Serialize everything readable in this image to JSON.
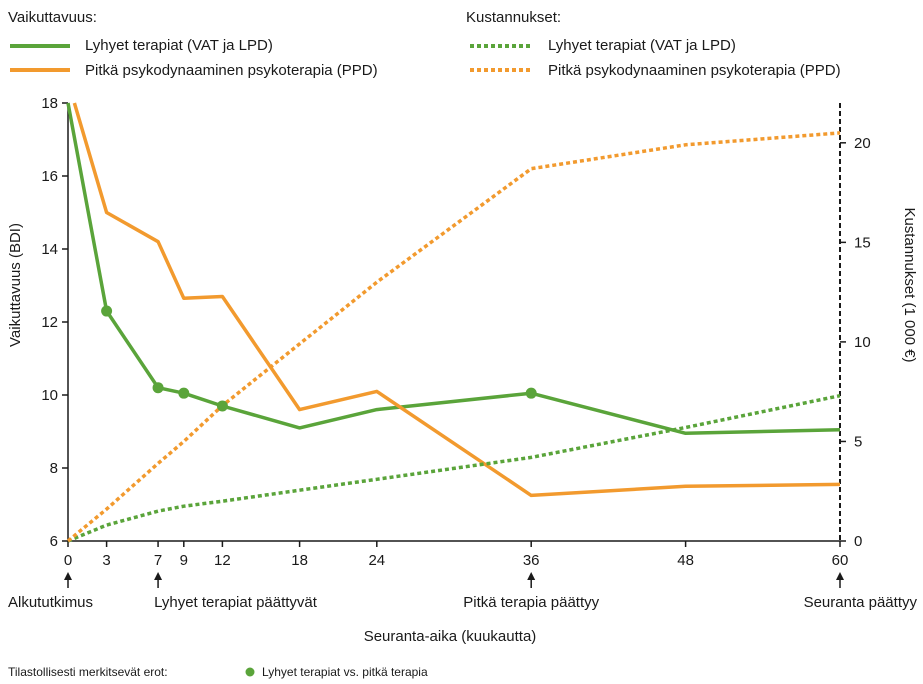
{
  "chart_data": {
    "type": "line",
    "legend": {
      "left_title": "Vaikuttavuus:",
      "right_title": "Kustannukset:",
      "left_items": [
        {
          "label": "Lyhyet terapiat (VAT ja LPD)",
          "style": "solid",
          "color": "#5aa43a"
        },
        {
          "label": "Pitkä psykodynaaminen psykoterapia (PPD)",
          "style": "solid",
          "color": "#f29a2e"
        }
      ],
      "right_items": [
        {
          "label": "Lyhyet terapiat (VAT ja LPD)",
          "style": "dotted",
          "color": "#5aa43a"
        },
        {
          "label": "Pitkä psykodynaaminen psykoterapia (PPD)",
          "style": "dotted",
          "color": "#f29a2e"
        }
      ]
    },
    "xlabel": "Seuranta-aika (kuukautta)",
    "ylabel_left": "Vaikuttavuus (BDI)",
    "ylabel_right": "Kustannukset (1 000 €)",
    "x_ticks": [
      0,
      3,
      7,
      9,
      12,
      18,
      24,
      36,
      48,
      60
    ],
    "xlim": [
      0,
      60
    ],
    "ylim_left": [
      6,
      18
    ],
    "y_ticks_left": [
      6,
      8,
      10,
      12,
      14,
      16,
      18
    ],
    "ylim_right": [
      0,
      22
    ],
    "y_ticks_right": [
      0,
      5,
      10,
      15,
      20
    ],
    "series": [
      {
        "name": "Lyhyet terapiat (VAT ja LPD)",
        "axis": "left",
        "style": "solid",
        "color": "#5aa43a",
        "x": [
          0,
          3,
          7,
          9,
          12,
          18,
          24,
          36,
          48,
          60
        ],
        "y": [
          18,
          12.3,
          10.2,
          10.05,
          9.7,
          9.1,
          9.6,
          10.05,
          8.95,
          9.05
        ]
      },
      {
        "name": "Pitkä psykodynaaminen psykoterapia (PPD)",
        "axis": "left",
        "style": "solid",
        "color": "#f29a2e",
        "x": [
          0.5,
          3,
          7,
          9,
          12,
          18,
          24,
          36,
          48,
          60
        ],
        "y": [
          18,
          15.0,
          14.2,
          12.65,
          12.7,
          9.6,
          10.1,
          7.25,
          7.5,
          7.55
        ]
      },
      {
        "name": "Lyhyet terapiat (VAT ja LPD)",
        "axis": "right",
        "style": "dotted",
        "color": "#5aa43a",
        "x": [
          0,
          3,
          7,
          9,
          12,
          18,
          24,
          36,
          48,
          60
        ],
        "y": [
          0,
          0.8,
          1.5,
          1.75,
          2.0,
          2.55,
          3.1,
          4.2,
          5.7,
          7.3
        ]
      },
      {
        "name": "Pitkä psykodynaaminen psykoterapia (PPD)",
        "axis": "right",
        "style": "dotted",
        "color": "#f29a2e",
        "x": [
          0,
          3,
          7,
          9,
          12,
          18,
          24,
          36,
          48,
          60
        ],
        "y": [
          0,
          1.6,
          3.9,
          5.0,
          6.8,
          9.9,
          13.0,
          18.7,
          19.9,
          20.5
        ]
      }
    ],
    "significant_points": [
      {
        "x": 3,
        "y": 12.3
      },
      {
        "x": 7,
        "y": 10.2
      },
      {
        "x": 9,
        "y": 10.05
      },
      {
        "x": 12,
        "y": 9.7
      },
      {
        "x": 36,
        "y": 10.05
      }
    ],
    "significant_color": "#5aa43a",
    "event_markers": [
      {
        "x": 0,
        "label": "Alkututkimus"
      },
      {
        "x": 7,
        "label": "Lyhyet terapiat päättyvät"
      },
      {
        "x": 36,
        "label": "Pitkä terapia päättyy"
      },
      {
        "x": 60,
        "label": "Seuranta päättyy"
      }
    ],
    "footnote": {
      "label": "Tilastollisesti merkitsevät erot:",
      "item": "Lyhyet terapiat vs. pitkä terapia"
    }
  }
}
